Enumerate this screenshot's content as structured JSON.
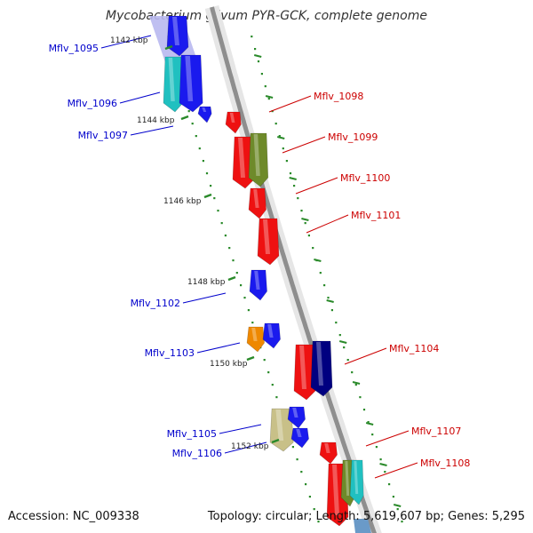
{
  "title": "Mycobacterium gilvum PYR-GCK, complete genome",
  "footer": {
    "accession": "Accession: NC_009338",
    "summary": "Topology: circular; Length: 5,619,607 bp; Genes: 5,295"
  },
  "colors": {
    "backbone": "#8e8e8e",
    "tick": "#2a8a2a",
    "left_label": "#0000cc",
    "right_label": "#cc0000"
  },
  "kbp_labels": [
    "1142 kbp",
    "1144 kbp",
    "1146 kbp",
    "1148 kbp",
    "1150 kbp",
    "1152 kbp"
  ],
  "genes": [
    {
      "id": "Mflv_1095",
      "side": "left",
      "color": "#1a1aee"
    },
    {
      "id": "Mflv_1096",
      "side": "left",
      "color": "#1a1aee"
    },
    {
      "id": "Mflv_1097",
      "side": "left",
      "color": "#1a1aee"
    },
    {
      "id": "Mflv_1098",
      "side": "right",
      "color": "#ee1111"
    },
    {
      "id": "Mflv_1099",
      "side": "right",
      "color": "#6e8a2a"
    },
    {
      "id": "Mflv_1100",
      "side": "right",
      "color": "#ee1111"
    },
    {
      "id": "Mflv_1101",
      "side": "right",
      "color": "#ee1111"
    },
    {
      "id": "Mflv_1102",
      "side": "left",
      "color": "#1a1aee"
    },
    {
      "id": "Mflv_1103",
      "side": "left",
      "color": "#ee8800"
    },
    {
      "id": "Mflv_1104",
      "side": "right",
      "color": "#000080"
    },
    {
      "id": "Mflv_1105",
      "side": "left",
      "color": "#c8c088"
    },
    {
      "id": "Mflv_1106",
      "side": "left",
      "color": "#1a1aee"
    },
    {
      "id": "Mflv_1107",
      "side": "right",
      "color": "#ee1111"
    },
    {
      "id": "Mflv_1108",
      "side": "right",
      "color": "#20c0c0"
    }
  ]
}
